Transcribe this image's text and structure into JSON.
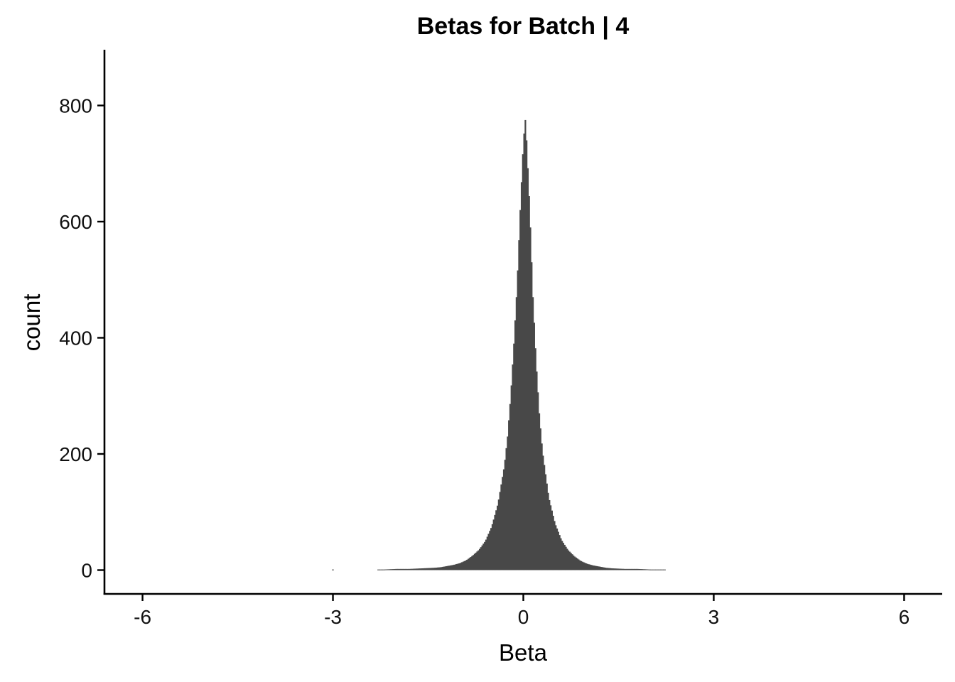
{
  "chart_data": {
    "type": "bar",
    "subtype": "histogram",
    "title": "Betas for Batch | 4",
    "xlabel": "Beta",
    "ylabel": "count",
    "xlim": [
      -6.6,
      6.6
    ],
    "ylim": [
      -41,
      896
    ],
    "x_ticks": [
      -6,
      -3,
      0,
      3,
      6
    ],
    "x_tick_labels": [
      "-6",
      "-3",
      "0",
      "3",
      "6"
    ],
    "y_ticks": [
      0,
      200,
      400,
      600,
      800
    ],
    "y_tick_labels": [
      "0",
      "200",
      "400",
      "600",
      "800"
    ],
    "grid": false,
    "legend": "none",
    "bar_color": "#484848",
    "bins": [
      {
        "x": -3.0,
        "count": 1
      },
      {
        "x": -2.2,
        "count": 1
      },
      {
        "x": -2.0,
        "count": 2
      },
      {
        "x": -1.8,
        "count": 2
      },
      {
        "x": -1.6,
        "count": 3
      },
      {
        "x": -1.4,
        "count": 4
      },
      {
        "x": -1.3,
        "count": 5
      },
      {
        "x": -1.2,
        "count": 7
      },
      {
        "x": -1.1,
        "count": 9
      },
      {
        "x": -1.0,
        "count": 12
      },
      {
        "x": -0.9,
        "count": 17
      },
      {
        "x": -0.8,
        "count": 25
      },
      {
        "x": -0.7,
        "count": 35
      },
      {
        "x": -0.6,
        "count": 50
      },
      {
        "x": -0.5,
        "count": 75
      },
      {
        "x": -0.4,
        "count": 115
      },
      {
        "x": -0.3,
        "count": 180
      },
      {
        "x": -0.25,
        "count": 230
      },
      {
        "x": -0.2,
        "count": 300
      },
      {
        "x": -0.15,
        "count": 390
      },
      {
        "x": -0.1,
        "count": 490
      },
      {
        "x": -0.05,
        "count": 620
      },
      {
        "x": 0.0,
        "count": 740
      },
      {
        "x": 0.03,
        "count": 775
      },
      {
        "x": 0.05,
        "count": 740
      },
      {
        "x": 0.1,
        "count": 620
      },
      {
        "x": 0.15,
        "count": 470
      },
      {
        "x": 0.2,
        "count": 360
      },
      {
        "x": 0.25,
        "count": 270
      },
      {
        "x": 0.3,
        "count": 205
      },
      {
        "x": 0.4,
        "count": 125
      },
      {
        "x": 0.5,
        "count": 80
      },
      {
        "x": 0.6,
        "count": 52
      },
      {
        "x": 0.7,
        "count": 35
      },
      {
        "x": 0.8,
        "count": 24
      },
      {
        "x": 0.9,
        "count": 16
      },
      {
        "x": 1.0,
        "count": 11
      },
      {
        "x": 1.1,
        "count": 8
      },
      {
        "x": 1.2,
        "count": 6
      },
      {
        "x": 1.3,
        "count": 4
      },
      {
        "x": 1.4,
        "count": 3
      },
      {
        "x": 1.6,
        "count": 2
      },
      {
        "x": 1.8,
        "count": 2
      },
      {
        "x": 2.0,
        "count": 1
      },
      {
        "x": 2.25,
        "count": 1
      }
    ]
  }
}
